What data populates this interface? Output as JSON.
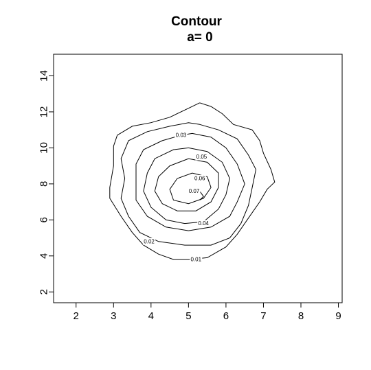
{
  "chart_data": {
    "type": "contour",
    "title": "Contour",
    "subtitle": "a= 0",
    "xlabel": "",
    "ylabel": "",
    "xlim": [
      1.4,
      9.1
    ],
    "ylim": [
      1.4,
      15.2
    ],
    "x_ticks": [
      "2",
      "3",
      "4",
      "5",
      "6",
      "7",
      "8",
      "9"
    ],
    "y_ticks": [
      "2",
      "4",
      "6",
      "8",
      "10",
      "12",
      "14"
    ],
    "grid": false,
    "levels": [
      {
        "level": 0.01,
        "label": "0.01",
        "label_at": [
          5.2,
          3.8
        ],
        "points": [
          [
            5.3,
            12.5
          ],
          [
            5.6,
            12.3
          ],
          [
            5.9,
            11.9
          ],
          [
            6.2,
            11.3
          ],
          [
            6.7,
            11.0
          ],
          [
            6.9,
            10.4
          ],
          [
            7.0,
            9.7
          ],
          [
            7.2,
            8.8
          ],
          [
            7.3,
            8.1
          ],
          [
            7.1,
            7.7
          ],
          [
            6.9,
            7.0
          ],
          [
            6.6,
            6.1
          ],
          [
            6.3,
            5.2
          ],
          [
            6.0,
            4.5
          ],
          [
            5.5,
            3.9
          ],
          [
            5.0,
            3.8
          ],
          [
            4.6,
            3.8
          ],
          [
            4.2,
            4.1
          ],
          [
            3.8,
            4.6
          ],
          [
            3.5,
            5.3
          ],
          [
            3.2,
            6.2
          ],
          [
            2.9,
            7.2
          ],
          [
            2.9,
            7.8
          ],
          [
            3.0,
            9.0
          ],
          [
            3.0,
            10.1
          ],
          [
            3.1,
            10.7
          ],
          [
            3.5,
            11.2
          ],
          [
            4.0,
            11.4
          ],
          [
            4.5,
            11.7
          ],
          [
            5.0,
            12.2
          ],
          [
            5.3,
            12.5
          ]
        ]
      },
      {
        "level": 0.02,
        "label": "0.02",
        "label_at": [
          3.95,
          4.8
        ],
        "points": [
          [
            5.3,
            11.3
          ],
          [
            5.8,
            11.0
          ],
          [
            6.3,
            10.5
          ],
          [
            6.6,
            9.6
          ],
          [
            6.8,
            8.8
          ],
          [
            6.7,
            7.8
          ],
          [
            6.6,
            6.8
          ],
          [
            6.4,
            5.8
          ],
          [
            6.1,
            5.0
          ],
          [
            5.6,
            4.6
          ],
          [
            4.9,
            4.6
          ],
          [
            4.2,
            4.8
          ],
          [
            3.7,
            5.3
          ],
          [
            3.4,
            6.2
          ],
          [
            3.2,
            7.2
          ],
          [
            3.3,
            8.3
          ],
          [
            3.2,
            9.4
          ],
          [
            3.4,
            10.4
          ],
          [
            3.9,
            10.9
          ],
          [
            4.5,
            11.2
          ],
          [
            5.0,
            11.4
          ],
          [
            5.3,
            11.3
          ]
        ]
      },
      {
        "level": 0.03,
        "label": "0.03",
        "label_at": [
          4.8,
          10.7
        ],
        "points": [
          [
            5.1,
            10.8
          ],
          [
            5.6,
            10.6
          ],
          [
            6.0,
            10.0
          ],
          [
            6.3,
            9.1
          ],
          [
            6.5,
            8.0
          ],
          [
            6.3,
            7.0
          ],
          [
            6.1,
            6.2
          ],
          [
            5.6,
            5.6
          ],
          [
            5.0,
            5.4
          ],
          [
            4.4,
            5.6
          ],
          [
            3.9,
            6.2
          ],
          [
            3.6,
            7.1
          ],
          [
            3.6,
            8.1
          ],
          [
            3.6,
            9.1
          ],
          [
            3.8,
            9.9
          ],
          [
            4.3,
            10.4
          ],
          [
            4.8,
            10.7
          ],
          [
            5.1,
            10.8
          ]
        ]
      },
      {
        "level": 0.04,
        "label": "0.04",
        "label_at": [
          5.4,
          5.8
        ],
        "points": [
          [
            5.0,
            10.0
          ],
          [
            5.5,
            9.8
          ],
          [
            5.9,
            9.2
          ],
          [
            6.1,
            8.3
          ],
          [
            6.0,
            7.4
          ],
          [
            5.8,
            6.6
          ],
          [
            5.4,
            5.9
          ],
          [
            4.9,
            5.8
          ],
          [
            4.4,
            6.0
          ],
          [
            4.0,
            6.7
          ],
          [
            3.8,
            7.6
          ],
          [
            3.9,
            8.6
          ],
          [
            4.1,
            9.4
          ],
          [
            4.6,
            9.9
          ],
          [
            5.0,
            10.0
          ]
        ]
      },
      {
        "level": 0.05,
        "label": "0.05",
        "label_at": [
          5.35,
          9.5
        ],
        "points": [
          [
            5.0,
            9.4
          ],
          [
            5.5,
            9.2
          ],
          [
            5.8,
            8.6
          ],
          [
            5.8,
            7.8
          ],
          [
            5.6,
            7.0
          ],
          [
            5.2,
            6.5
          ],
          [
            4.7,
            6.5
          ],
          [
            4.3,
            6.9
          ],
          [
            4.1,
            7.6
          ],
          [
            4.2,
            8.4
          ],
          [
            4.5,
            9.0
          ],
          [
            5.0,
            9.4
          ]
        ]
      },
      {
        "level": 0.06,
        "label": "0.06",
        "label_at": [
          5.3,
          8.3
        ],
        "points": [
          [
            5.1,
            8.6
          ],
          [
            5.5,
            8.4
          ],
          [
            5.6,
            7.8
          ],
          [
            5.4,
            7.2
          ],
          [
            5.0,
            6.9
          ],
          [
            4.6,
            7.1
          ],
          [
            4.5,
            7.7
          ],
          [
            4.7,
            8.3
          ],
          [
            5.1,
            8.6
          ]
        ]
      },
      {
        "level": 0.07,
        "label": "0.07",
        "label_at": [
          5.15,
          7.6
        ],
        "points": [
          [
            5.3,
            7.6
          ],
          [
            5.4,
            7.3
          ],
          [
            5.3,
            7.1
          ]
        ]
      }
    ]
  }
}
